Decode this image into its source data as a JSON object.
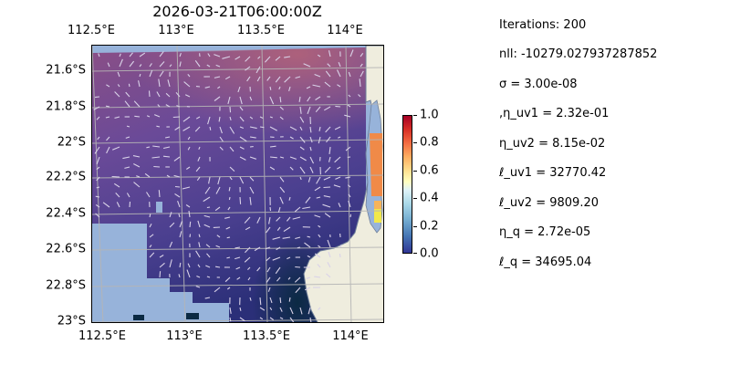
{
  "title": "2026-03-21T06:00:00Z",
  "map": {
    "lon_ticks": [
      "112.5°E",
      "113°E",
      "113.5°E",
      "114°E"
    ],
    "lat_ticks": [
      "21.6°S",
      "21.8°S",
      "22°S",
      "22.2°S",
      "22.4°S",
      "22.6°S",
      "22.8°S",
      "23°S"
    ],
    "extent": {
      "lon_min": 112.5,
      "lon_max": 114.2,
      "lat_min": -23.0,
      "lat_max": -21.5
    },
    "colors": {
      "land": "#efedde",
      "ocean": "#97b3da",
      "field_high": "#b06070",
      "field_low": "#0b2a43"
    }
  },
  "colorbar": {
    "ticks": [
      "1.0",
      "0.8",
      "0.6",
      "0.4",
      "0.2",
      "0.0"
    ],
    "colormap": "RdYlBu_r",
    "range": [
      0.0,
      1.0
    ]
  },
  "stats": [
    "Iterations: 200",
    "nll: -10279.027937287852",
    "σ = 3.00e-08",
    ",η_uv1 = 2.32e-01",
    "η_uv2 = 8.15e-02",
    "ℓ_uv1 = 32770.42",
    "ℓ_uv2 = 9809.20",
    "η_q = 2.72e-05",
    "ℓ_q = 34695.04"
  ]
}
